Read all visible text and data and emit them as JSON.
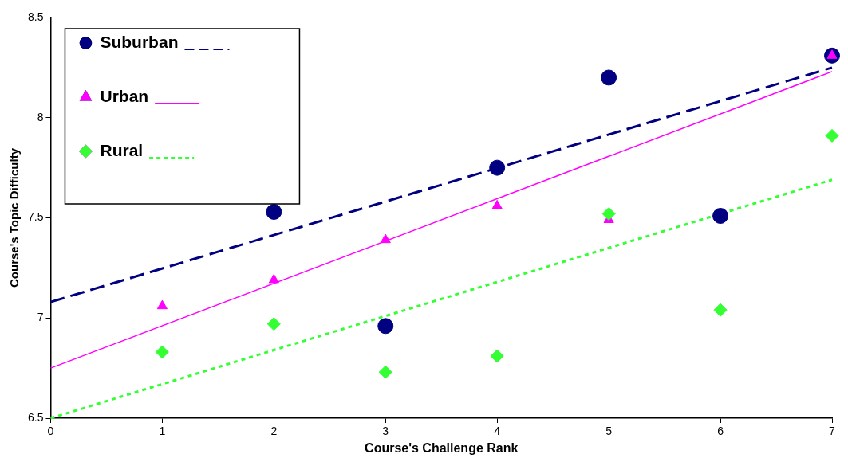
{
  "chart_data": {
    "type": "scatter",
    "xlabel": "Course's Challenge Rank",
    "ylabel": "Course's Topic Difficulty",
    "xlim": [
      0,
      7
    ],
    "xticks": [
      0,
      1,
      2,
      3,
      4,
      5,
      6,
      7
    ],
    "ylim": [
      6.5,
      8.5
    ],
    "yticks": [
      6.5,
      7,
      7.5,
      8,
      8.5
    ],
    "grid": false,
    "legend": "top left",
    "series": [
      {
        "name": "Suburban",
        "marker": "circle",
        "color": "#000080",
        "x": [
          2,
          3,
          4,
          5,
          6,
          7
        ],
        "values": [
          7.53,
          6.96,
          7.75,
          8.2,
          7.51,
          8.31
        ]
      },
      {
        "type": "line",
        "marker": "none",
        "line_style": "dashed",
        "color": "#000080",
        "x": [
          0,
          7
        ],
        "values": [
          7.08,
          8.25
        ]
      },
      {
        "name": "Urban",
        "marker": "triangle",
        "color": "#ff00ff",
        "x": [
          1,
          2,
          3,
          4,
          5,
          7
        ],
        "values": [
          7.06,
          7.19,
          7.39,
          7.56,
          7.49,
          8.31
        ]
      },
      {
        "type": "line",
        "marker": "none",
        "line_style": "solid",
        "color": "#ff00ff",
        "x": [
          0,
          7
        ],
        "values": [
          6.75,
          8.23
        ]
      },
      {
        "name": "Rural",
        "marker": "diamond",
        "color": "#33ff33",
        "x": [
          1,
          2,
          3,
          4,
          5,
          6,
          7
        ],
        "values": [
          6.83,
          6.97,
          6.73,
          6.81,
          7.52,
          7.04,
          7.91
        ]
      },
      {
        "type": "line",
        "marker": "none",
        "line_style": "dotted",
        "color": "#33ff33",
        "x": [
          0,
          7
        ],
        "values": [
          6.5,
          7.69
        ]
      }
    ]
  }
}
